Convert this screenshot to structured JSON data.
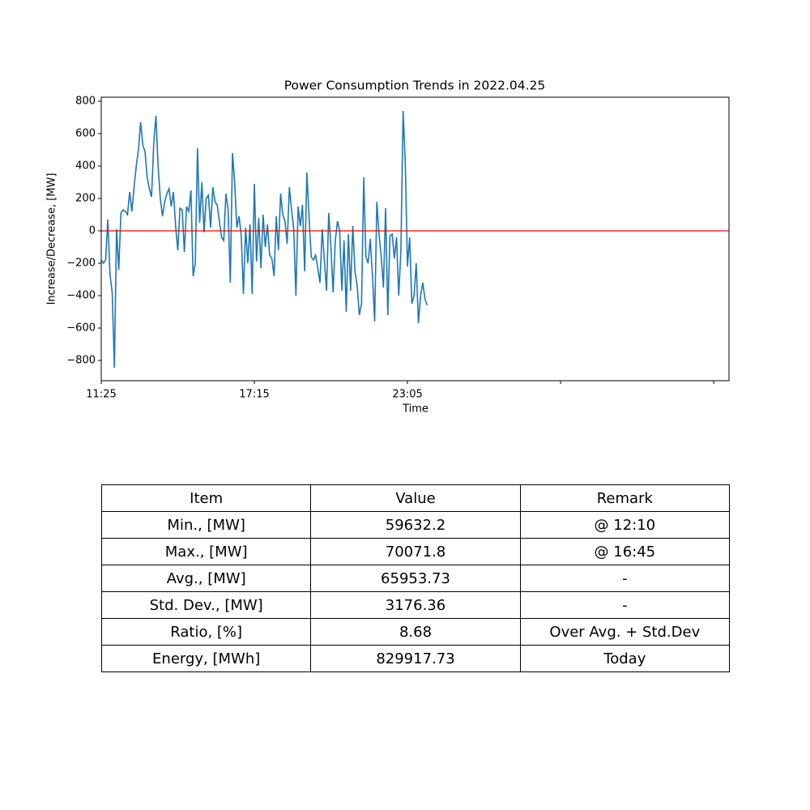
{
  "chart_data": {
    "type": "line",
    "title": "Power Consumption Trends in 2022.04.25",
    "xlabel": "Time",
    "ylabel": "Increase/Decrease, [MW]",
    "xlim": [
      0,
      287
    ],
    "xticks": [
      {
        "value": 0,
        "label": "11:25"
      },
      {
        "value": 70,
        "label": "17:15"
      },
      {
        "value": 140,
        "label": "23:05"
      },
      {
        "value": 210,
        "label": null
      },
      {
        "value": 280,
        "label": null
      }
    ],
    "ylim": [
      -925,
      825
    ],
    "yticks": [
      {
        "value": -800,
        "label": "−800"
      },
      {
        "value": -600,
        "label": "−600"
      },
      {
        "value": -400,
        "label": "−400"
      },
      {
        "value": -200,
        "label": "−200"
      },
      0,
      200,
      400,
      600,
      800
    ],
    "hline": 0,
    "hline_color": "#ff0000",
    "series": [
      {
        "color": "#1f77b4",
        "values": [
          -180,
          -200,
          -180,
          70,
          -270,
          -380,
          -845,
          10,
          -240,
          110,
          130,
          120,
          100,
          240,
          120,
          270,
          400,
          500,
          670,
          530,
          490,
          330,
          260,
          210,
          540,
          710,
          400,
          200,
          90,
          180,
          230,
          260,
          150,
          240,
          30,
          -120,
          140,
          130,
          -130,
          150,
          120,
          250,
          -280,
          -200,
          510,
          50,
          300,
          -10,
          200,
          220,
          20,
          270,
          180,
          160,
          60,
          -40,
          -60,
          230,
          130,
          -320,
          480,
          300,
          20,
          90,
          -30,
          -390,
          20,
          -200,
          40,
          -390,
          290,
          -190,
          80,
          -230,
          100,
          -100,
          40,
          -150,
          -170,
          -280,
          90,
          -120,
          230,
          100,
          60,
          -80,
          270,
          130,
          10,
          -400,
          150,
          30,
          160,
          -250,
          360,
          90,
          -160,
          -180,
          -150,
          -230,
          -320,
          10,
          -180,
          -370,
          110,
          -100,
          -380,
          -60,
          60,
          0,
          -370,
          -60,
          -500,
          -20,
          -370,
          30,
          -250,
          -340,
          -520,
          -450,
          330,
          -160,
          -200,
          -50,
          -280,
          -560,
          180,
          -20,
          -160,
          -350,
          140,
          -520,
          -30,
          -20,
          -170,
          -40,
          -400,
          -120,
          740,
          420,
          -220,
          -40,
          -450,
          -400,
          -200,
          -570,
          -400,
          -320,
          -420,
          -460
        ]
      }
    ]
  },
  "table": {
    "header": [
      "Item",
      "Value",
      "Remark"
    ],
    "rows": [
      [
        "Min., [MW]",
        "59632.2",
        "@ 12:10"
      ],
      [
        "Max., [MW]",
        "70071.8",
        "@ 16:45"
      ],
      [
        "Avg., [MW]",
        "65953.73",
        "-"
      ],
      [
        "Std. Dev., [MW]",
        "3176.36",
        "-"
      ],
      [
        "Ratio, [%]",
        "8.68",
        "Over Avg. + Std.Dev"
      ],
      [
        "Energy, [MWh]",
        "829917.73",
        "Today"
      ]
    ]
  }
}
